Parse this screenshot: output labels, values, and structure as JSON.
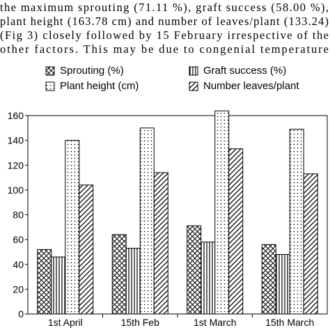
{
  "text": {
    "lines": [
      "the maximum sprouting (71.11 %), graft success (58.00 %),",
      "plant height (163.78 cm) and number of leaves/plant (133.24)",
      "(Fig 3) closely followed by 15 February irrespective of the",
      "other factors. This may be due to congenial temperature"
    ]
  },
  "chart_data": {
    "type": "bar",
    "categories": [
      "1st April",
      "15th Feb",
      "1st March",
      "15th March"
    ],
    "series": [
      {
        "name": "Sprouting (%)",
        "pattern": "crosshatch",
        "values": [
          52,
          64,
          71.11,
          56
        ]
      },
      {
        "name": "Graft success (%)",
        "pattern": "vertical",
        "values": [
          46,
          53,
          58,
          48
        ]
      },
      {
        "name": "Plant height (cm)",
        "pattern": "dots",
        "values": [
          140,
          150,
          163.78,
          149
        ]
      },
      {
        "name": "Number leaves/plant",
        "pattern": "diagonal",
        "values": [
          104,
          114,
          133.24,
          113
        ]
      }
    ],
    "ylim": [
      0,
      160
    ],
    "yticks": [
      0,
      20,
      40,
      60,
      80,
      100,
      120,
      140,
      160
    ],
    "legend": "top"
  }
}
